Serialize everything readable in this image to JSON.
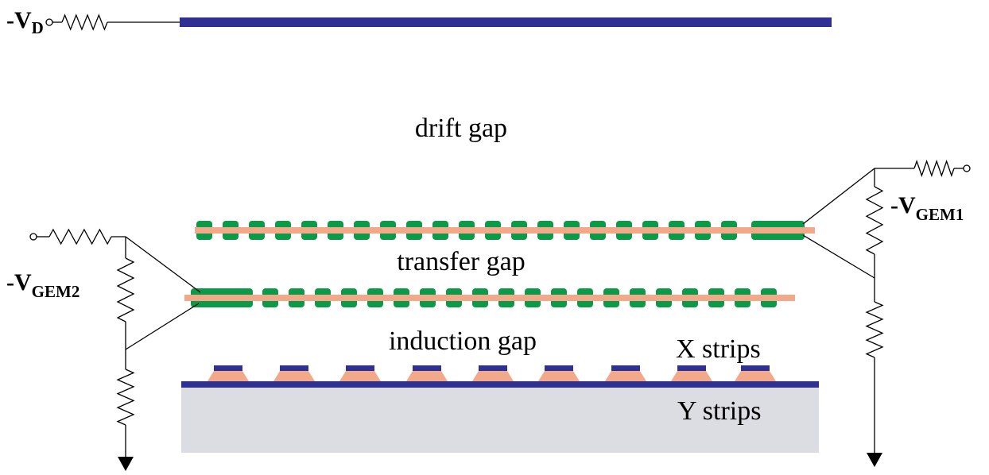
{
  "labels": {
    "drift_voltage": {
      "main": "-V",
      "sub": "D"
    },
    "gem1_voltage": {
      "main": "-V",
      "sub": "GEM1"
    },
    "gem2_voltage": {
      "main": "-V",
      "sub": "GEM2"
    },
    "drift_gap": "drift gap",
    "transfer_gap": "transfer gap",
    "induction_gap": "induction gap",
    "x_strips": "X strips",
    "y_strips": "Y strips"
  }
}
